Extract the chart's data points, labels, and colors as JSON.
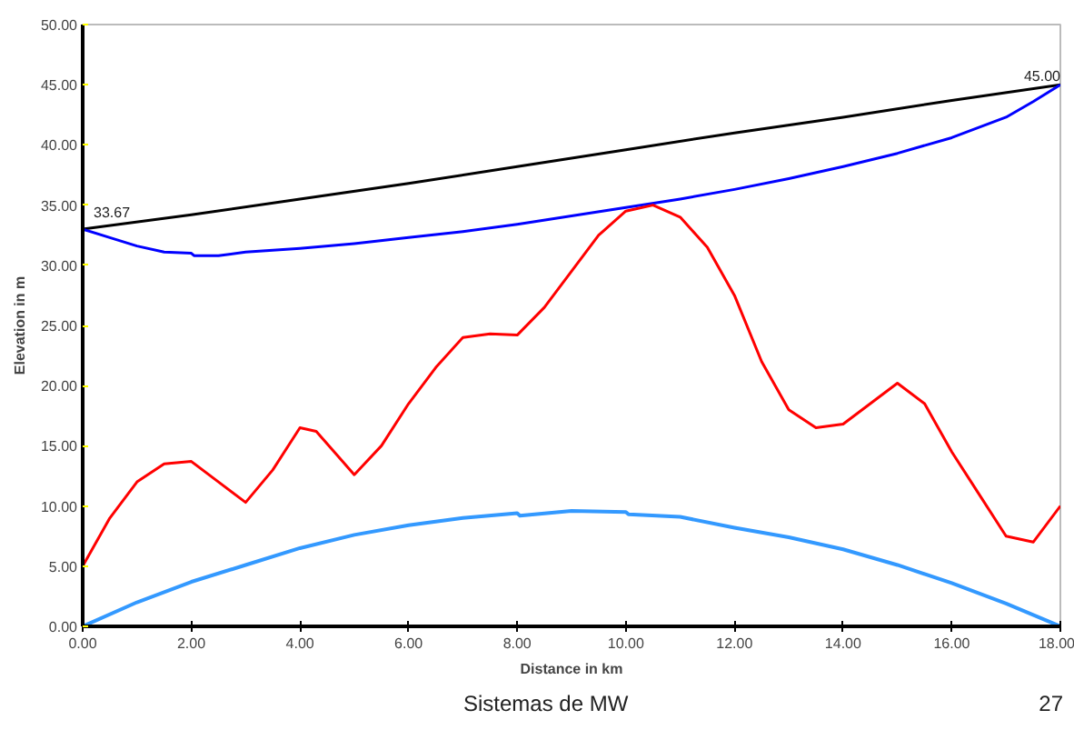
{
  "chart_data": {
    "type": "line",
    "xlabel": "Distance in km",
    "ylabel": "Elevation in m",
    "xlim": [
      0,
      18
    ],
    "ylim": [
      0,
      50
    ],
    "xticks": [
      {
        "value": 0,
        "label": "0.00"
      },
      {
        "value": 2,
        "label": "2.00"
      },
      {
        "value": 4,
        "label": "4.00"
      },
      {
        "value": 6,
        "label": "6.00"
      },
      {
        "value": 8,
        "label": "8.00"
      },
      {
        "value": 10,
        "label": "10.00"
      },
      {
        "value": 12,
        "label": "12.00"
      },
      {
        "value": 14,
        "label": "14.00"
      },
      {
        "value": 16,
        "label": "16.00"
      },
      {
        "value": 18,
        "label": "18.00"
      }
    ],
    "yticks": [
      {
        "value": 0,
        "label": "0.00"
      },
      {
        "value": 5,
        "label": "5.00"
      },
      {
        "value": 10,
        "label": "10.00"
      },
      {
        "value": 15,
        "label": "15.00"
      },
      {
        "value": 20,
        "label": "20.00"
      },
      {
        "value": 25,
        "label": "25.00"
      },
      {
        "value": 30,
        "label": "30.00"
      },
      {
        "value": 35,
        "label": "35.00"
      },
      {
        "value": 40,
        "label": "40.00"
      },
      {
        "value": 45,
        "label": "45.00"
      },
      {
        "value": 50,
        "label": "50.00"
      }
    ],
    "grid": false,
    "marker": "none",
    "line_style": "solid",
    "series": [
      {
        "color": "#000000",
        "x": [
          0,
          2,
          4,
          6,
          8,
          10,
          12,
          14,
          16,
          18
        ],
        "values": [
          33,
          34.2,
          35.5,
          36.8,
          38.2,
          39.6,
          41,
          42.3,
          43.7,
          45
        ]
      },
      {
        "color": "#0000ff",
        "x": [
          0,
          0.5,
          1,
          1.5,
          2,
          2.05,
          2.5,
          3,
          4,
          5,
          6,
          7,
          8,
          9,
          10,
          11,
          12,
          13,
          14,
          15,
          16,
          17,
          17.5,
          18
        ],
        "values": [
          33,
          32.3,
          31.6,
          31.1,
          31,
          30.8,
          30.8,
          31.1,
          31.4,
          31.8,
          32.3,
          32.8,
          33.4,
          34.1,
          34.8,
          35.5,
          36.3,
          37.2,
          38.2,
          39.3,
          40.6,
          42.3,
          43.6,
          45
        ]
      },
      {
        "color": "#ff0000",
        "x": [
          0,
          0.5,
          1,
          1.5,
          2,
          2.5,
          3,
          3.5,
          4,
          4.3,
          5,
          5.5,
          6,
          6.5,
          7,
          7.5,
          8,
          8.5,
          9,
          9.5,
          10,
          10.5,
          11,
          11.5,
          12,
          12.5,
          13,
          13.5,
          14,
          14.5,
          15,
          15.5,
          16,
          16.5,
          17,
          17.5,
          18
        ],
        "values": [
          5,
          9,
          12,
          13.5,
          13.7,
          12,
          10.3,
          13,
          16.5,
          16.2,
          12.6,
          15,
          18.5,
          21.5,
          24,
          24.3,
          24.2,
          26.5,
          29.5,
          32.5,
          34.5,
          35,
          34,
          31.5,
          27.5,
          22,
          18,
          16.5,
          16.8,
          18.5,
          20.2,
          18.5,
          14.5,
          11,
          7.5,
          7,
          10
        ]
      },
      {
        "color": "#3399ff",
        "x": [
          0,
          1,
          2,
          3,
          4,
          5,
          6,
          7,
          8,
          8.05,
          9,
          10,
          10.05,
          11,
          12,
          13,
          14,
          15,
          16,
          17,
          18
        ],
        "values": [
          0,
          2,
          3.7,
          5.1,
          6.5,
          7.6,
          8.4,
          9,
          9.4,
          9.2,
          9.6,
          9.5,
          9.3,
          9.1,
          8.2,
          7.4,
          6.4,
          5.1,
          3.6,
          1.9,
          0
        ]
      }
    ],
    "annotations": [
      {
        "text": "33.67",
        "x": 0,
        "y": 33.67
      },
      {
        "text": "45.00",
        "x": 18,
        "y": 45
      },
      "Sistemas de MW",
      "27"
    ]
  }
}
